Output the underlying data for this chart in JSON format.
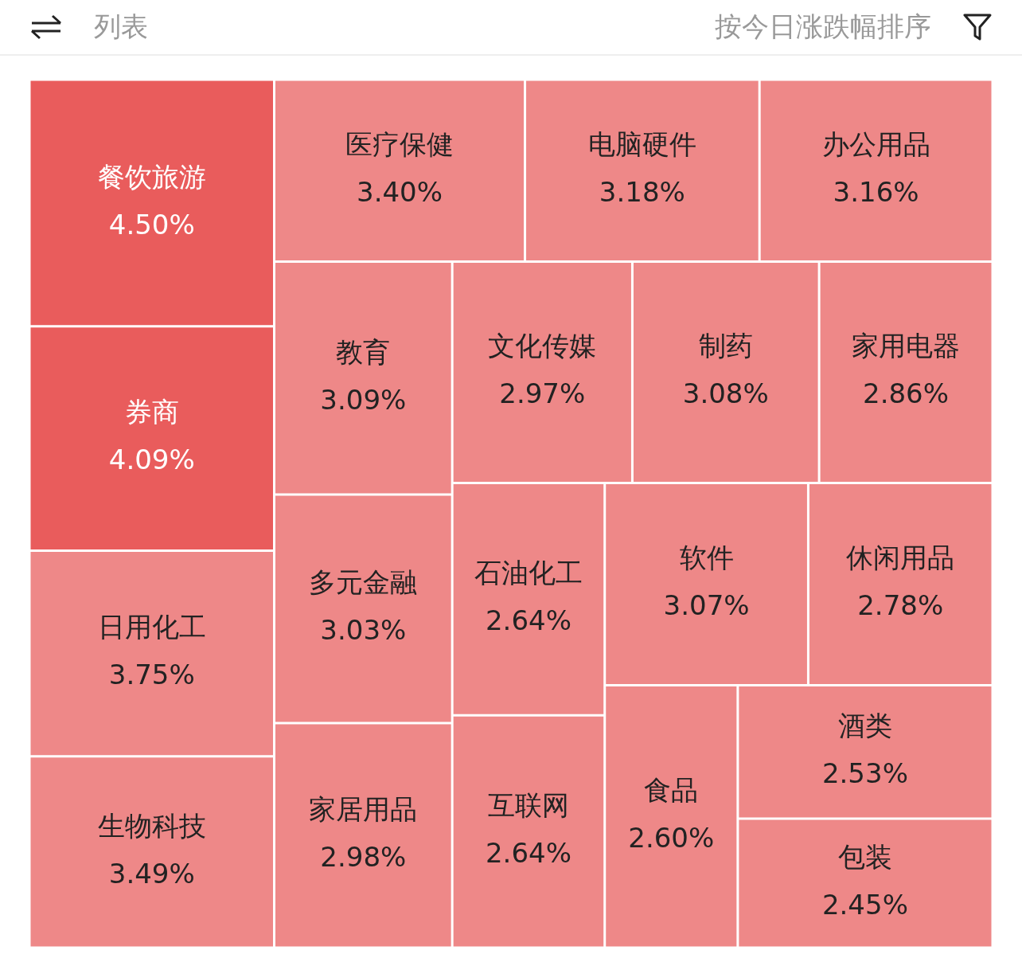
{
  "chart_data": {
    "type": "other",
    "annotations": [
      "列表",
      "按今日涨跌幅排序"
    ],
    "categories": [
      "餐饮旅游",
      "券商",
      "日用化工",
      "生物科技",
      "医疗保健",
      "电脑硬件",
      "办公用品",
      "教育",
      "多元金融",
      "家居用品",
      "文化传媒",
      "制药",
      "家用电器",
      "石油化工",
      "互联网",
      "软件",
      "休闲用品",
      "食品",
      "酒类",
      "包装"
    ],
    "values": [
      4.5,
      4.09,
      3.75,
      3.49,
      3.4,
      3.18,
      3.16,
      3.09,
      3.03,
      2.98,
      2.97,
      3.08,
      2.86,
      2.64,
      2.64,
      3.07,
      2.78,
      2.6,
      2.53,
      2.45
    ],
    "value_labels": [
      "4.50%",
      "4.09%",
      "3.75%",
      "3.49%",
      "3.40%",
      "3.18%",
      "3.16%",
      "3.09%",
      "3.03%",
      "2.98%",
      "2.97%",
      "3.08%",
      "2.86%",
      "2.64%",
      "2.64%",
      "3.07%",
      "2.78%",
      "2.60%",
      "2.53%",
      "2.45%"
    ],
    "colors": [
      "#e95c5c",
      "#e95c5c",
      "#ee8888",
      "#ee8888",
      "#ee8888",
      "#ee8888",
      "#ee8888",
      "#ee8888",
      "#ee8888",
      "#ee8888",
      "#ee8888",
      "#ee8888",
      "#ee8888",
      "#ee8888",
      "#ee8888",
      "#ee8888",
      "#ee8888",
      "#ee8888",
      "#ee8888",
      "#ee8888"
    ]
  }
}
